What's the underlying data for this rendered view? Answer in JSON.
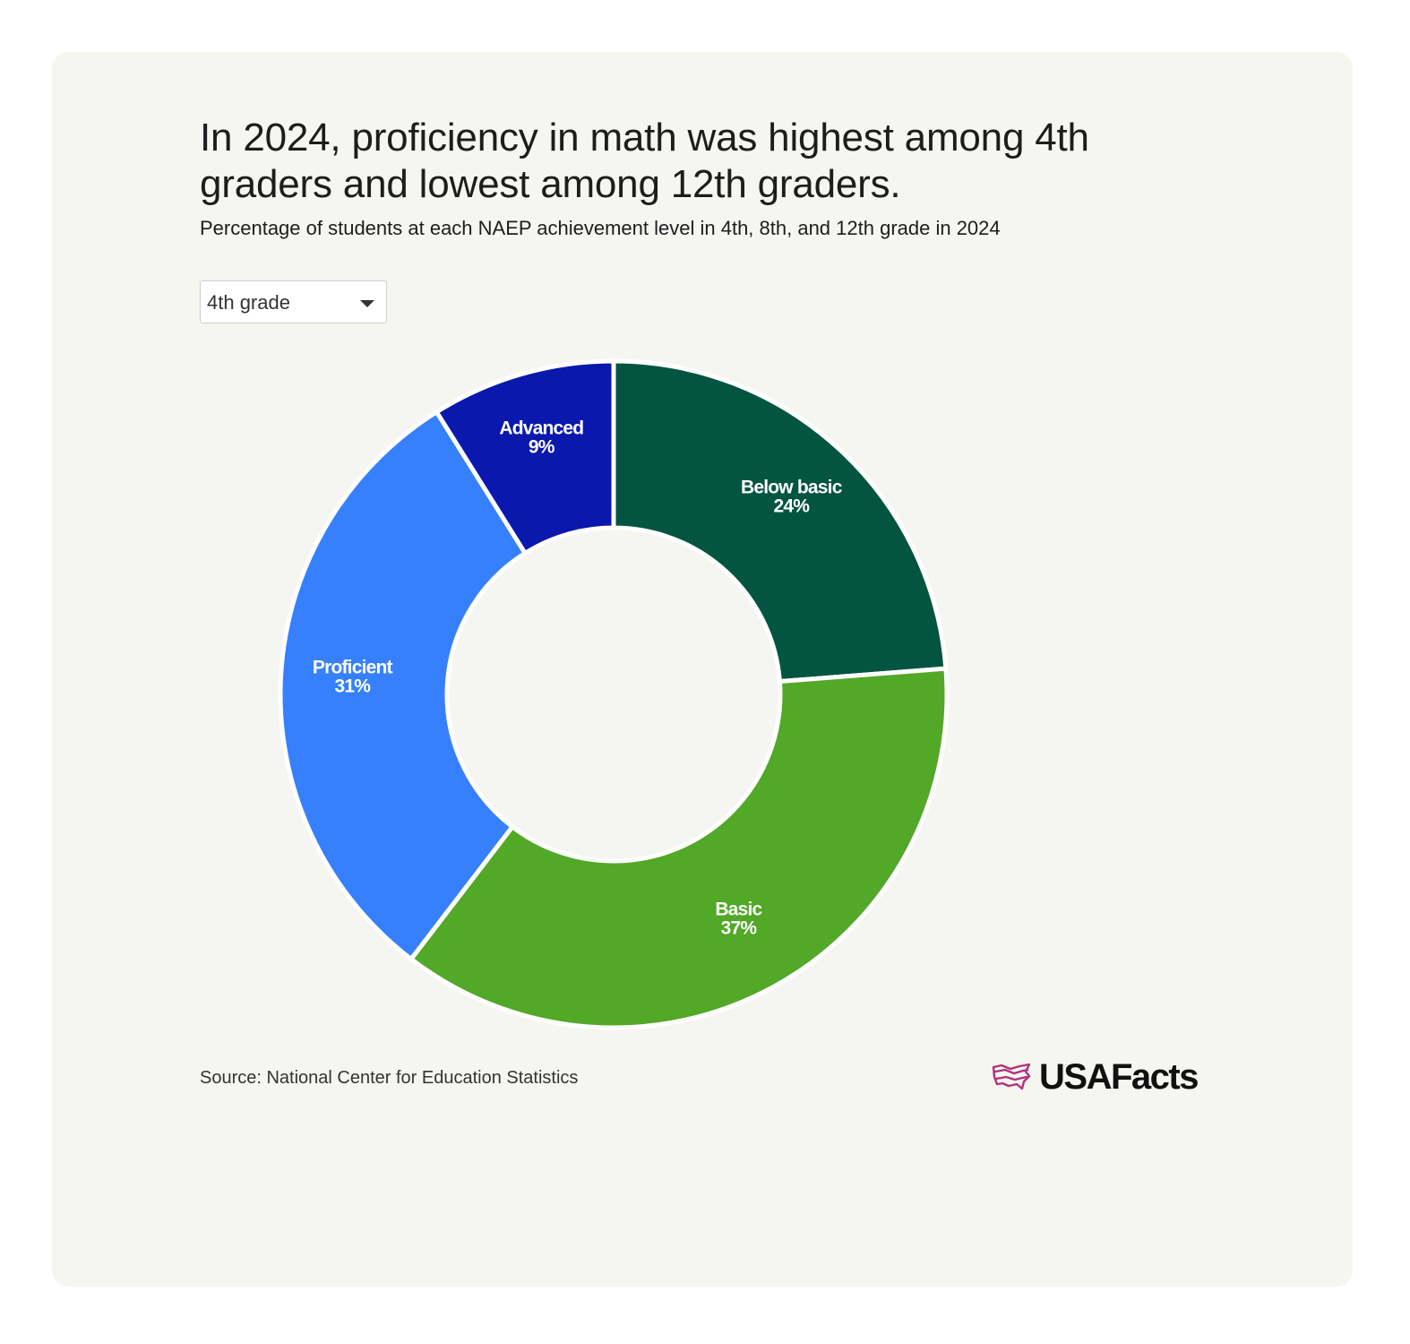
{
  "header": {
    "title": "In 2024, proficiency in math was highest among 4th graders and lowest among 12th graders.",
    "subtitle": "Percentage of students at each NAEP achievement level in 4th, 8th, and 12th grade in 2024"
  },
  "filter": {
    "selected": "4th grade"
  },
  "chart_data": {
    "type": "pie",
    "variant": "donut",
    "title": "In 2024, proficiency in math was highest among 4th graders and lowest among 12th graders.",
    "subtitle": "Percentage of students at each NAEP achievement level in 4th, 8th, and 12th grade in 2024",
    "unit": "%",
    "slices": [
      {
        "label": "Below basic",
        "value": 24,
        "display": "24%",
        "color": "#045442"
      },
      {
        "label": "Basic",
        "value": 37,
        "display": "37%",
        "color": "#52a827"
      },
      {
        "label": "Proficient",
        "value": 31,
        "display": "31%",
        "color": "#3680fe"
      },
      {
        "label": "Advanced",
        "value": 9,
        "display": "9%",
        "color": "#0b18ad"
      }
    ]
  },
  "footer": {
    "source": "Source: National Center for Education Statistics",
    "brand": "USAFacts",
    "brand_color": "#b5307a"
  }
}
